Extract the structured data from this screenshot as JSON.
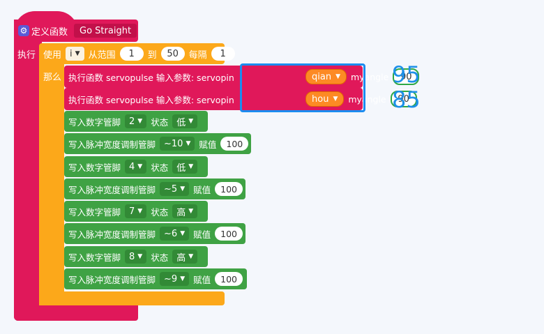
{
  "def": {
    "title": "定义函数",
    "name": "Go Straight",
    "exec_label": "执行",
    "gear_icon": "gear-icon"
  },
  "loop": {
    "use_label": "使用",
    "var": "i",
    "range_label": "从范围",
    "from": "1",
    "to_label": "到",
    "to": "50",
    "step_label": "每隔",
    "step": "1",
    "do_label": "那么"
  },
  "calls": [
    {
      "text": "执行函数 servopulse 输入参数:  servopin",
      "pin": "qian",
      "arg_label": "myangle",
      "angle": "90",
      "annotation": "95"
    },
    {
      "text": "执行函数 servopulse 输入参数:  servopin",
      "pin": "hou",
      "arg_label": "myangle",
      "angle": "90",
      "annotation": "85"
    }
  ],
  "blocks": [
    {
      "label": "写入数字管脚",
      "pin": "2",
      "mid": "状态",
      "value": "低",
      "kind": "digital"
    },
    {
      "label": "写入脉冲宽度调制管脚",
      "pin": "~10",
      "mid": "赋值",
      "value": "100",
      "kind": "pwm"
    },
    {
      "label": "写入数字管脚",
      "pin": "4",
      "mid": "状态",
      "value": "低",
      "kind": "digital"
    },
    {
      "label": "写入脉冲宽度调制管脚",
      "pin": "~5",
      "mid": "赋值",
      "value": "100",
      "kind": "pwm"
    },
    {
      "label": "写入数字管脚",
      "pin": "7",
      "mid": "状态",
      "value": "高",
      "kind": "digital"
    },
    {
      "label": "写入脉冲宽度调制管脚",
      "pin": "~6",
      "mid": "赋值",
      "value": "100",
      "kind": "pwm"
    },
    {
      "label": "写入数字管脚",
      "pin": "8",
      "mid": "状态",
      "value": "高",
      "kind": "digital"
    },
    {
      "label": "写入脉冲宽度调制管脚",
      "pin": "~9",
      "mid": "赋值",
      "value": "100",
      "kind": "pwm"
    }
  ],
  "colors": {
    "function": "#e0185a",
    "loop": "#fca81a",
    "io": "#3fa244",
    "highlight": "#1b8cf0"
  }
}
